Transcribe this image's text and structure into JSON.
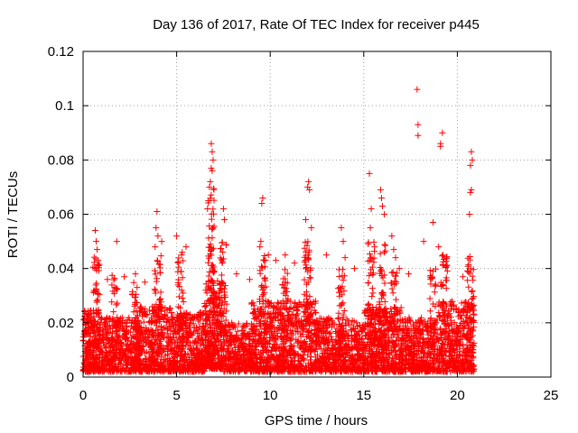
{
  "chart_data": {
    "type": "scatter",
    "title": "Day 136 of 2017, Rate Of TEC Index for receiver p445",
    "xlabel": "GPS time / hours",
    "ylabel": "ROTI / TECUs",
    "xlim": [
      0,
      25
    ],
    "ylim": [
      0,
      0.12
    ],
    "xticks": [
      0,
      5,
      10,
      15,
      20,
      25
    ],
    "xtick_labels": [
      "0",
      "5",
      "10",
      "15",
      "20",
      "25"
    ],
    "yticks": [
      0,
      0.02,
      0.04,
      0.06,
      0.08,
      0.1,
      0.12
    ],
    "ytick_labels": [
      "0",
      "0.02",
      "0.04",
      "0.06",
      "0.08",
      "0.1",
      "0.12"
    ],
    "grid": true,
    "marker": "plus",
    "color": "#ff0000",
    "points": [
      [
        17.85,
        0.106
      ],
      [
        17.9,
        0.093
      ],
      [
        17.9,
        0.089
      ],
      [
        19.2,
        0.09
      ],
      [
        19.1,
        0.086
      ],
      [
        19.1,
        0.085
      ],
      [
        6.85,
        0.086
      ],
      [
        6.9,
        0.083
      ],
      [
        6.95,
        0.08
      ],
      [
        6.85,
        0.077
      ],
      [
        6.9,
        0.076
      ],
      [
        6.8,
        0.072
      ],
      [
        6.75,
        0.07
      ],
      [
        6.7,
        0.065
      ],
      [
        6.65,
        0.062
      ],
      [
        7.5,
        0.062
      ],
      [
        7.55,
        0.058
      ],
      [
        20.75,
        0.083
      ],
      [
        20.8,
        0.08
      ],
      [
        20.7,
        0.078
      ],
      [
        20.75,
        0.069
      ],
      [
        20.7,
        0.068
      ],
      [
        20.65,
        0.06
      ],
      [
        15.3,
        0.075
      ],
      [
        15.4,
        0.062
      ],
      [
        15.35,
        0.055
      ],
      [
        15.9,
        0.069
      ],
      [
        15.95,
        0.066
      ],
      [
        16.0,
        0.063
      ],
      [
        16.1,
        0.06
      ],
      [
        16.5,
        0.052
      ],
      [
        16.6,
        0.047
      ],
      [
        16.7,
        0.044
      ],
      [
        12.05,
        0.072
      ],
      [
        12.0,
        0.07
      ],
      [
        12.1,
        0.069
      ],
      [
        11.9,
        0.058
      ],
      [
        12.2,
        0.055
      ],
      [
        9.6,
        0.066
      ],
      [
        9.55,
        0.064
      ],
      [
        9.5,
        0.05
      ],
      [
        9.45,
        0.048
      ],
      [
        9.9,
        0.045
      ],
      [
        3.95,
        0.061
      ],
      [
        3.9,
        0.055
      ],
      [
        4.0,
        0.052
      ],
      [
        3.85,
        0.048
      ],
      [
        4.2,
        0.05
      ],
      [
        0.65,
        0.054
      ],
      [
        0.7,
        0.05
      ],
      [
        0.75,
        0.047
      ],
      [
        0.8,
        0.043
      ],
      [
        0.7,
        0.04
      ],
      [
        1.8,
        0.05
      ],
      [
        13.8,
        0.055
      ],
      [
        13.9,
        0.05
      ],
      [
        18.7,
        0.057
      ],
      [
        19.0,
        0.048
      ],
      [
        18.2,
        0.05
      ],
      [
        19.4,
        0.041
      ],
      [
        5.0,
        0.052
      ],
      [
        5.5,
        0.048
      ],
      [
        5.3,
        0.046
      ],
      [
        10.3,
        0.043
      ],
      [
        10.8,
        0.045
      ],
      [
        11.3,
        0.042
      ],
      [
        13.0,
        0.045
      ],
      [
        14.0,
        0.044
      ],
      [
        14.5,
        0.04
      ],
      [
        2.8,
        0.038
      ],
      [
        2.2,
        0.037
      ],
      [
        8.2,
        0.038
      ],
      [
        8.9,
        0.036
      ],
      [
        17.4,
        0.038
      ],
      [
        16.9,
        0.04
      ],
      [
        20.3,
        0.037
      ],
      [
        1.3,
        0.036
      ],
      [
        3.3,
        0.035
      ]
    ],
    "density": [
      {
        "x0": 0.0,
        "x1": 1.0,
        "ymin": 0.002,
        "ymax": 0.025,
        "n": 260
      },
      {
        "x0": 1.0,
        "x1": 3.0,
        "ymin": 0.002,
        "ymax": 0.022,
        "n": 420
      },
      {
        "x0": 3.0,
        "x1": 5.0,
        "ymin": 0.002,
        "ymax": 0.026,
        "n": 430
      },
      {
        "x0": 5.0,
        "x1": 6.5,
        "ymin": 0.002,
        "ymax": 0.024,
        "n": 330
      },
      {
        "x0": 6.5,
        "x1": 7.5,
        "ymin": 0.003,
        "ymax": 0.036,
        "n": 320
      },
      {
        "x0": 7.5,
        "x1": 9.0,
        "ymin": 0.002,
        "ymax": 0.02,
        "n": 300
      },
      {
        "x0": 9.0,
        "x1": 12.5,
        "ymin": 0.002,
        "ymax": 0.028,
        "n": 760
      },
      {
        "x0": 12.5,
        "x1": 15.0,
        "ymin": 0.002,
        "ymax": 0.022,
        "n": 500
      },
      {
        "x0": 15.0,
        "x1": 17.0,
        "ymin": 0.002,
        "ymax": 0.026,
        "n": 460
      },
      {
        "x0": 17.0,
        "x1": 19.0,
        "ymin": 0.002,
        "ymax": 0.022,
        "n": 420
      },
      {
        "x0": 19.0,
        "x1": 20.9,
        "ymin": 0.002,
        "ymax": 0.028,
        "n": 420
      }
    ],
    "spikes": [
      {
        "x": 0.7,
        "ymax": 0.045,
        "n": 40
      },
      {
        "x": 1.7,
        "ymax": 0.038,
        "n": 30
      },
      {
        "x": 2.8,
        "ymax": 0.035,
        "n": 25
      },
      {
        "x": 4.0,
        "ymax": 0.045,
        "n": 40
      },
      {
        "x": 5.2,
        "ymax": 0.045,
        "n": 35
      },
      {
        "x": 6.85,
        "ymax": 0.07,
        "n": 80
      },
      {
        "x": 7.5,
        "ymax": 0.05,
        "n": 40
      },
      {
        "x": 9.6,
        "ymax": 0.045,
        "n": 40
      },
      {
        "x": 10.8,
        "ymax": 0.04,
        "n": 35
      },
      {
        "x": 12.0,
        "ymax": 0.05,
        "n": 45
      },
      {
        "x": 13.8,
        "ymax": 0.04,
        "n": 35
      },
      {
        "x": 15.4,
        "ymax": 0.05,
        "n": 40
      },
      {
        "x": 16.0,
        "ymax": 0.05,
        "n": 45
      },
      {
        "x": 16.6,
        "ymax": 0.04,
        "n": 30
      },
      {
        "x": 18.7,
        "ymax": 0.04,
        "n": 30
      },
      {
        "x": 19.3,
        "ymax": 0.045,
        "n": 35
      },
      {
        "x": 20.7,
        "ymax": 0.045,
        "n": 35
      }
    ]
  }
}
